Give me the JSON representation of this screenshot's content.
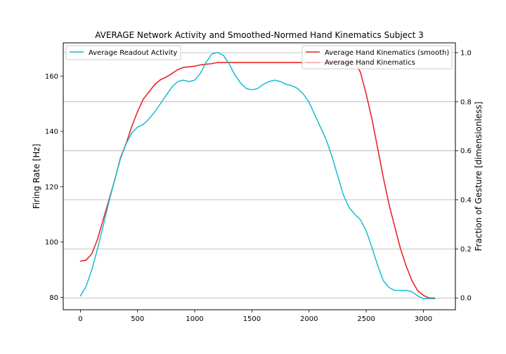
{
  "chart_data": {
    "type": "line",
    "title": "AVERAGE Network Activity and Smoothed-Normed Hand Kinematics Subject 3",
    "xlabel": "",
    "ylabel_left": "Firing Rate [Hz]",
    "ylabel_right": "Fraction of Gesture [dimensionless]",
    "xlim": [
      -150,
      3280
    ],
    "ylim_left": [
      75.5,
      172
    ],
    "ylim_right": [
      -0.048,
      1.04
    ],
    "x_ticks": [
      0,
      500,
      1000,
      1500,
      2000,
      2500,
      3000
    ],
    "y_ticks_left": [
      80,
      100,
      120,
      140,
      160
    ],
    "y_ticks_right": [
      0.0,
      0.2,
      0.4,
      0.6,
      0.8,
      1.0
    ],
    "x_tick_labels": [
      "0",
      "500",
      "1000",
      "1500",
      "2000",
      "2500",
      "3000"
    ],
    "y_tick_labels_left": [
      "80",
      "100",
      "120",
      "140",
      "160"
    ],
    "y_tick_labels_right": [
      "0.0",
      "0.2",
      "0.4",
      "0.6",
      "0.8",
      "1.0"
    ],
    "grid": "horizontal lines at right-axis ticks",
    "legend_left_placement": "upper-left",
    "legend_right_placement": "upper-right",
    "series": [
      {
        "name": "Average Readout Activity",
        "axis": "left",
        "color": "#17becf",
        "x": [
          0,
          50,
          100,
          150,
          200,
          250,
          300,
          350,
          400,
          450,
          500,
          550,
          600,
          650,
          700,
          750,
          800,
          850,
          900,
          950,
          1000,
          1050,
          1100,
          1150,
          1200,
          1250,
          1300,
          1350,
          1400,
          1450,
          1500,
          1550,
          1600,
          1650,
          1700,
          1750,
          1800,
          1850,
          1900,
          1950,
          2000,
          2050,
          2100,
          2150,
          2200,
          2250,
          2300,
          2350,
          2400,
          2450,
          2500,
          2550,
          2600,
          2650,
          2700,
          2750,
          2800,
          2850,
          2900,
          2950,
          3000,
          3050,
          3100
        ],
        "y": [
          80.5,
          84.0,
          90.0,
          97.5,
          106.0,
          114.5,
          122.5,
          130.0,
          135.5,
          139.5,
          141.5,
          142.5,
          144.5,
          147.0,
          150.0,
          153.0,
          156.0,
          158.0,
          158.5,
          158.0,
          158.5,
          161.0,
          165.0,
          168.0,
          168.5,
          167.5,
          164.5,
          160.5,
          157.5,
          155.5,
          155.0,
          155.5,
          157.0,
          158.0,
          158.5,
          158.0,
          157.0,
          156.5,
          155.5,
          153.5,
          150.5,
          146.0,
          141.5,
          137.0,
          131.0,
          124.0,
          117.0,
          112.5,
          110.0,
          108.0,
          104.0,
          98.0,
          91.5,
          86.0,
          83.5,
          82.5,
          82.5,
          82.5,
          82.0,
          80.5,
          79.5,
          79.5,
          79.5
        ]
      },
      {
        "name": "Average Hand Kinematics (smooth)",
        "axis": "right",
        "color": "#ee2222",
        "x": [
          0,
          50,
          100,
          150,
          200,
          250,
          300,
          350,
          400,
          450,
          500,
          550,
          600,
          650,
          700,
          750,
          800,
          850,
          900,
          950,
          1000,
          1050,
          1100,
          1150,
          1200,
          1300,
          1400,
          1500,
          1600,
          1700,
          1800,
          1900,
          2000,
          2100,
          2200,
          2300,
          2400,
          2450,
          2500,
          2550,
          2600,
          2650,
          2700,
          2750,
          2800,
          2850,
          2900,
          2950,
          3000,
          3050,
          3100
        ],
        "y": [
          0.15,
          0.155,
          0.18,
          0.24,
          0.32,
          0.4,
          0.48,
          0.57,
          0.63,
          0.7,
          0.76,
          0.81,
          0.84,
          0.87,
          0.89,
          0.9,
          0.915,
          0.93,
          0.94,
          0.942,
          0.945,
          0.95,
          0.953,
          0.955,
          0.96,
          0.96,
          0.96,
          0.96,
          0.96,
          0.96,
          0.96,
          0.96,
          0.96,
          0.96,
          0.96,
          0.96,
          0.96,
          0.92,
          0.83,
          0.73,
          0.61,
          0.49,
          0.38,
          0.29,
          0.2,
          0.13,
          0.07,
          0.03,
          0.01,
          0.0,
          0.0
        ]
      },
      {
        "name": "Average Hand Kinematics",
        "axis": "right",
        "color": "#f4a7a7",
        "x": [
          0,
          50,
          100,
          150,
          200,
          250,
          300,
          350,
          400,
          450,
          500,
          550,
          600,
          650,
          700,
          750,
          800,
          850,
          900,
          950,
          1000,
          1050,
          1100,
          1150,
          1200,
          1300,
          1400,
          1500,
          1600,
          1700,
          1800,
          1900,
          2000,
          2100,
          2200,
          2300,
          2400,
          2450,
          2500,
          2550,
          2600,
          2650,
          2700,
          2750,
          2800,
          2850,
          2900,
          2950,
          3000,
          3050,
          3100
        ],
        "y": [
          0.15,
          0.152,
          0.182,
          0.238,
          0.322,
          0.398,
          0.482,
          0.572,
          0.628,
          0.702,
          0.758,
          0.812,
          0.838,
          0.872,
          0.888,
          0.902,
          0.913,
          0.931,
          0.939,
          0.943,
          0.944,
          0.951,
          0.952,
          0.956,
          0.96,
          0.96,
          0.96,
          0.96,
          0.96,
          0.96,
          0.96,
          0.96,
          0.96,
          0.96,
          0.96,
          0.96,
          0.958,
          0.918,
          0.832,
          0.728,
          0.612,
          0.488,
          0.382,
          0.288,
          0.202,
          0.128,
          0.072,
          0.028,
          0.012,
          0.0,
          0.0
        ]
      }
    ]
  }
}
